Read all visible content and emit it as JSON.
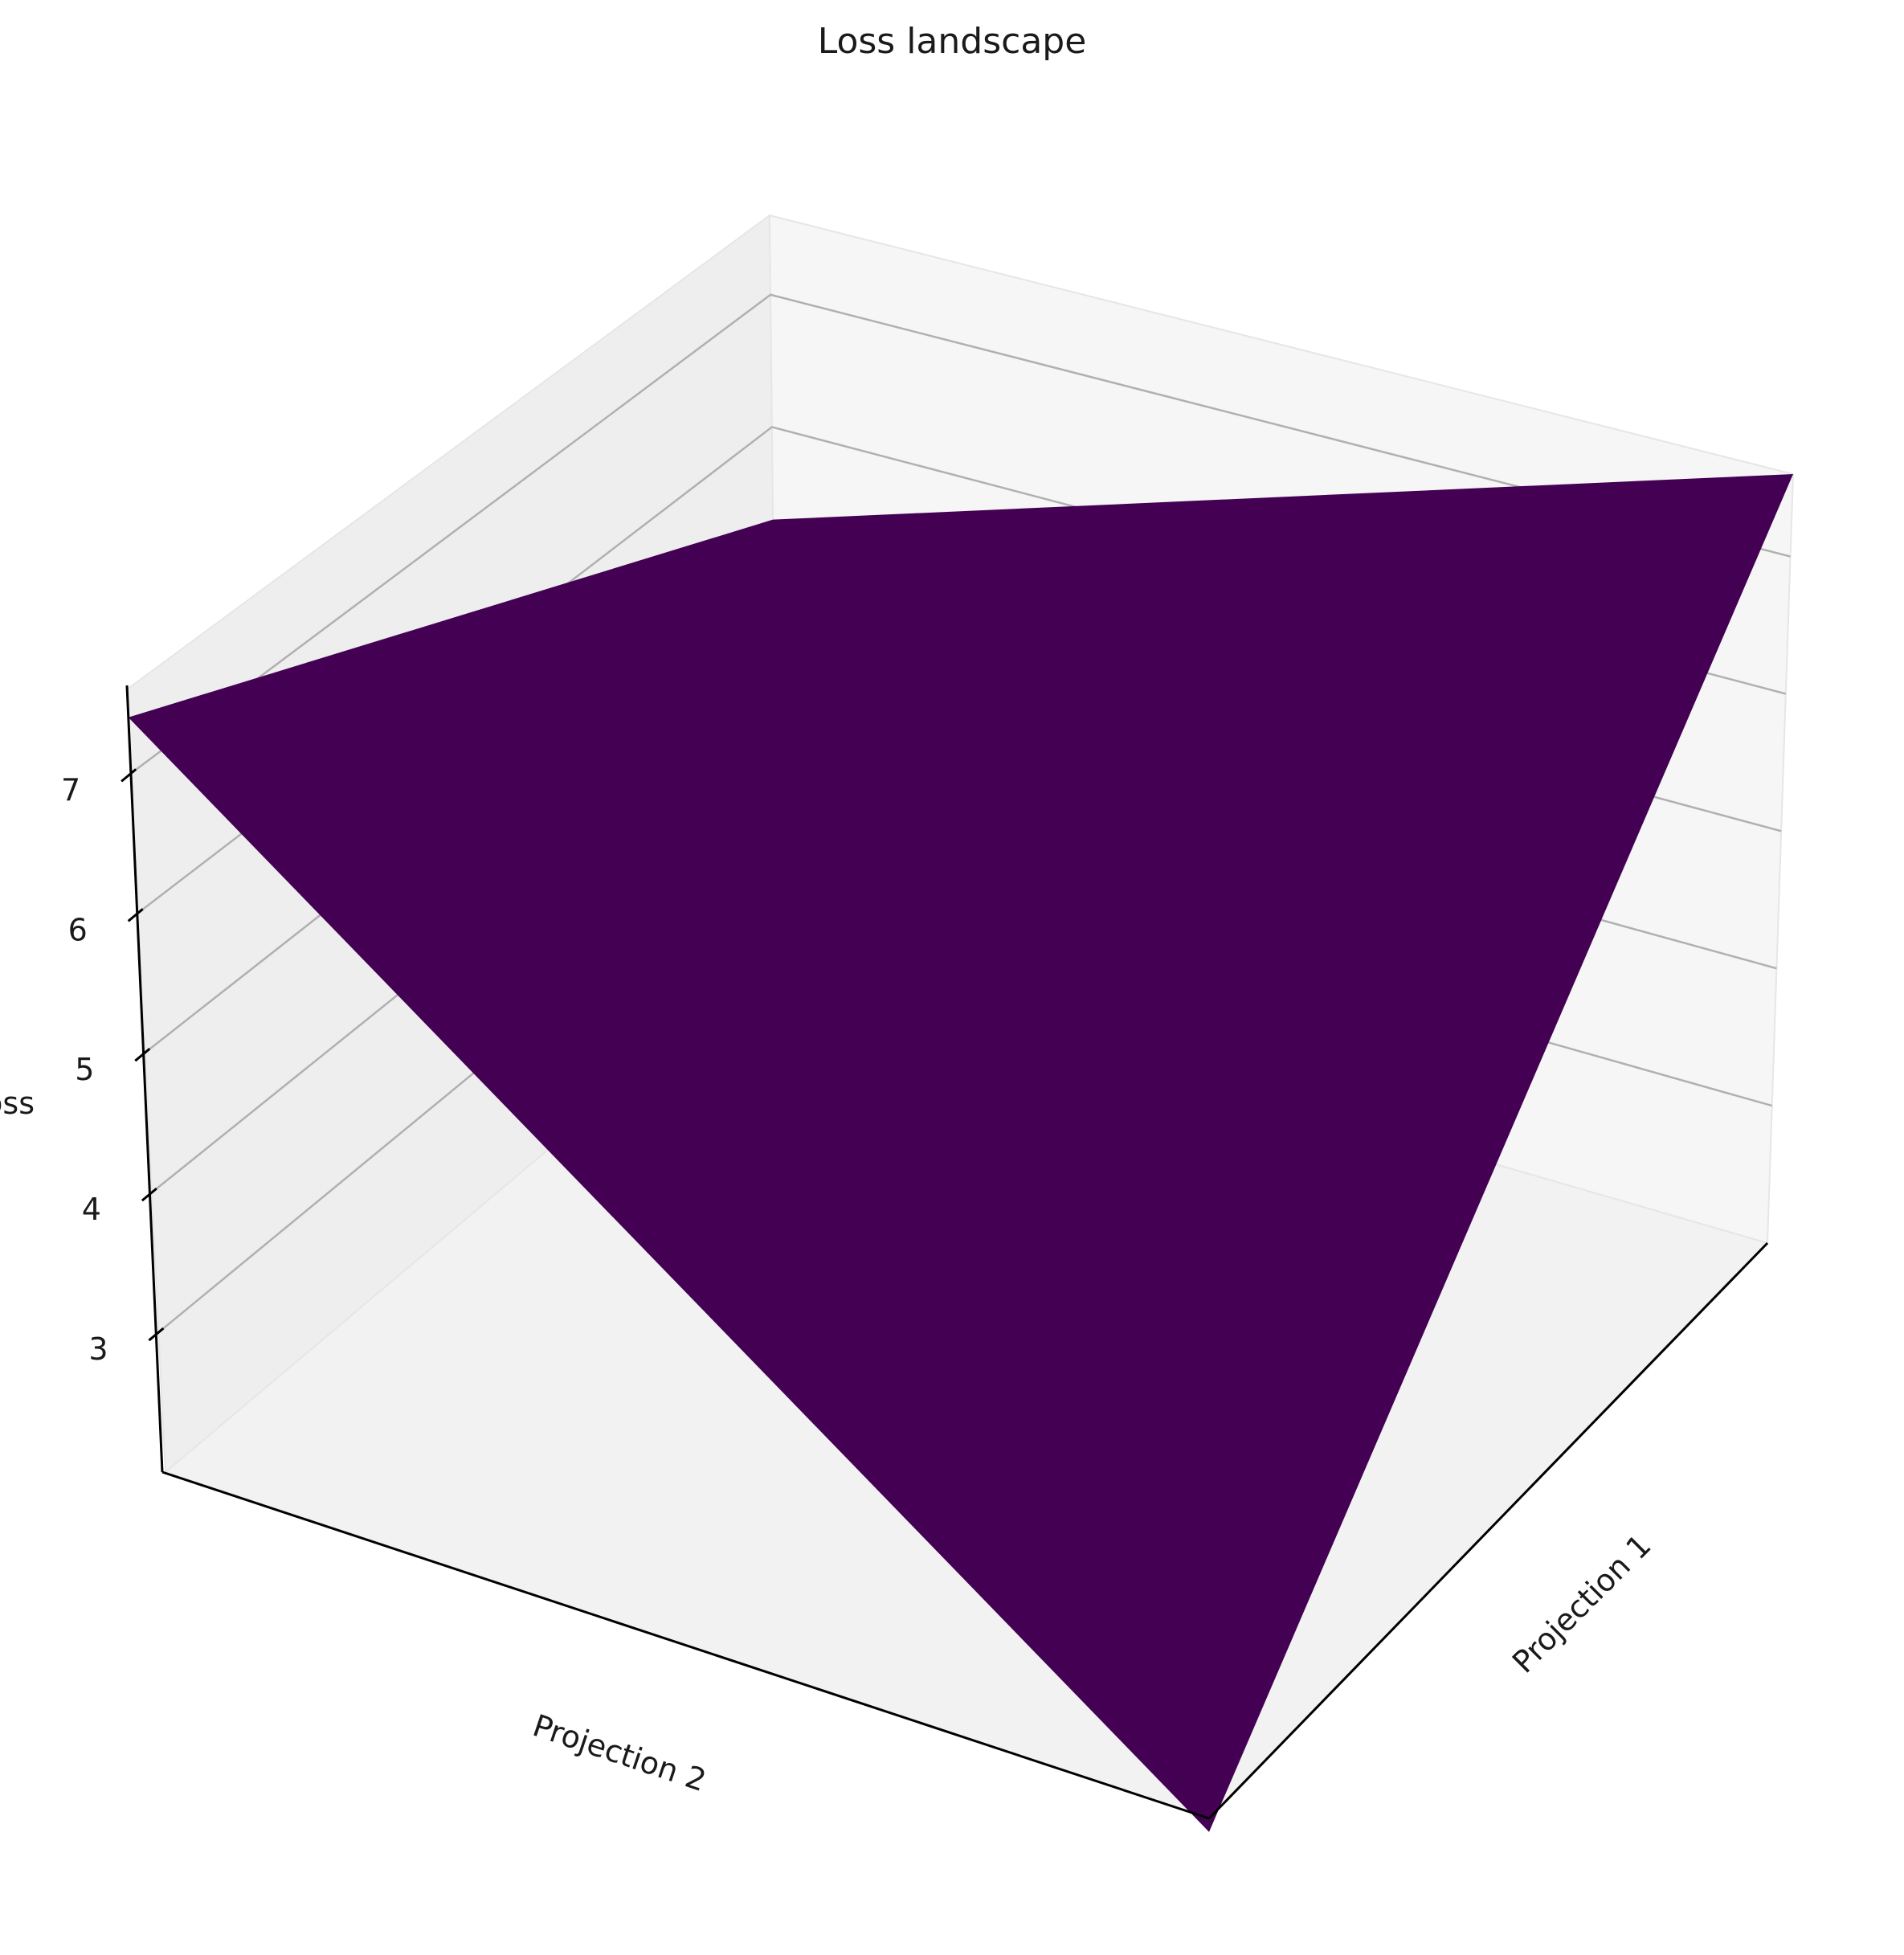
{
  "chart_data": {
    "type": "surface",
    "title": "Loss landscape",
    "xlabel": "Projection 1",
    "ylabel": "Projection 2",
    "zlabel": "Loss",
    "z_ticks": [
      3,
      4,
      5,
      6,
      7
    ],
    "zlim": [
      2.0,
      7.6
    ],
    "grid": true,
    "surface_color": "#440154",
    "surface": [
      {
        "corner": "x-high, y-low",
        "z": 7.6
      },
      {
        "corner": "x-low, y-low",
        "z": 5.3
      },
      {
        "corner": "x-low, y-high",
        "z": 7.4
      },
      {
        "corner": "x-high, y-high",
        "z": 1.9
      }
    ]
  }
}
